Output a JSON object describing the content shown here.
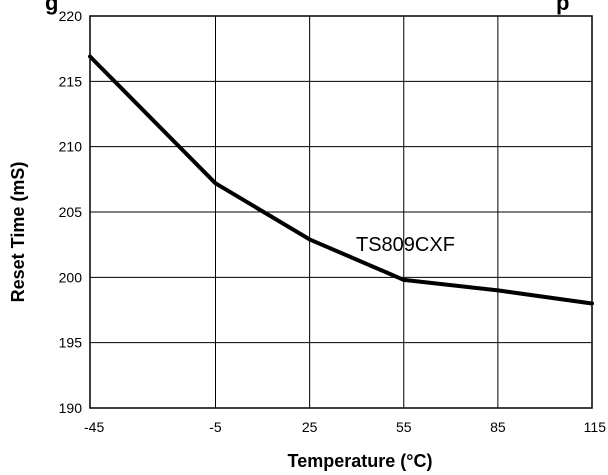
{
  "chart_data": {
    "type": "line",
    "title": "g",
    "title_right": "p",
    "xlabel": "Temperature (°C)",
    "ylabel": "Reset Time (mS)",
    "x_categories": [
      "-45",
      "-5",
      "25",
      "55",
      "85",
      "115"
    ],
    "ylim": [
      190,
      220
    ],
    "y_ticks": [
      "190",
      "195",
      "200",
      "205",
      "210",
      "215",
      "220"
    ],
    "grid": true,
    "series": [
      {
        "name": "TS809CXF",
        "x": [
          -45,
          -5,
          25,
          55,
          85,
          115
        ],
        "y": [
          216.9,
          207.2,
          202.9,
          199.8,
          199.0,
          198.0
        ],
        "color": "#000000"
      }
    ]
  }
}
